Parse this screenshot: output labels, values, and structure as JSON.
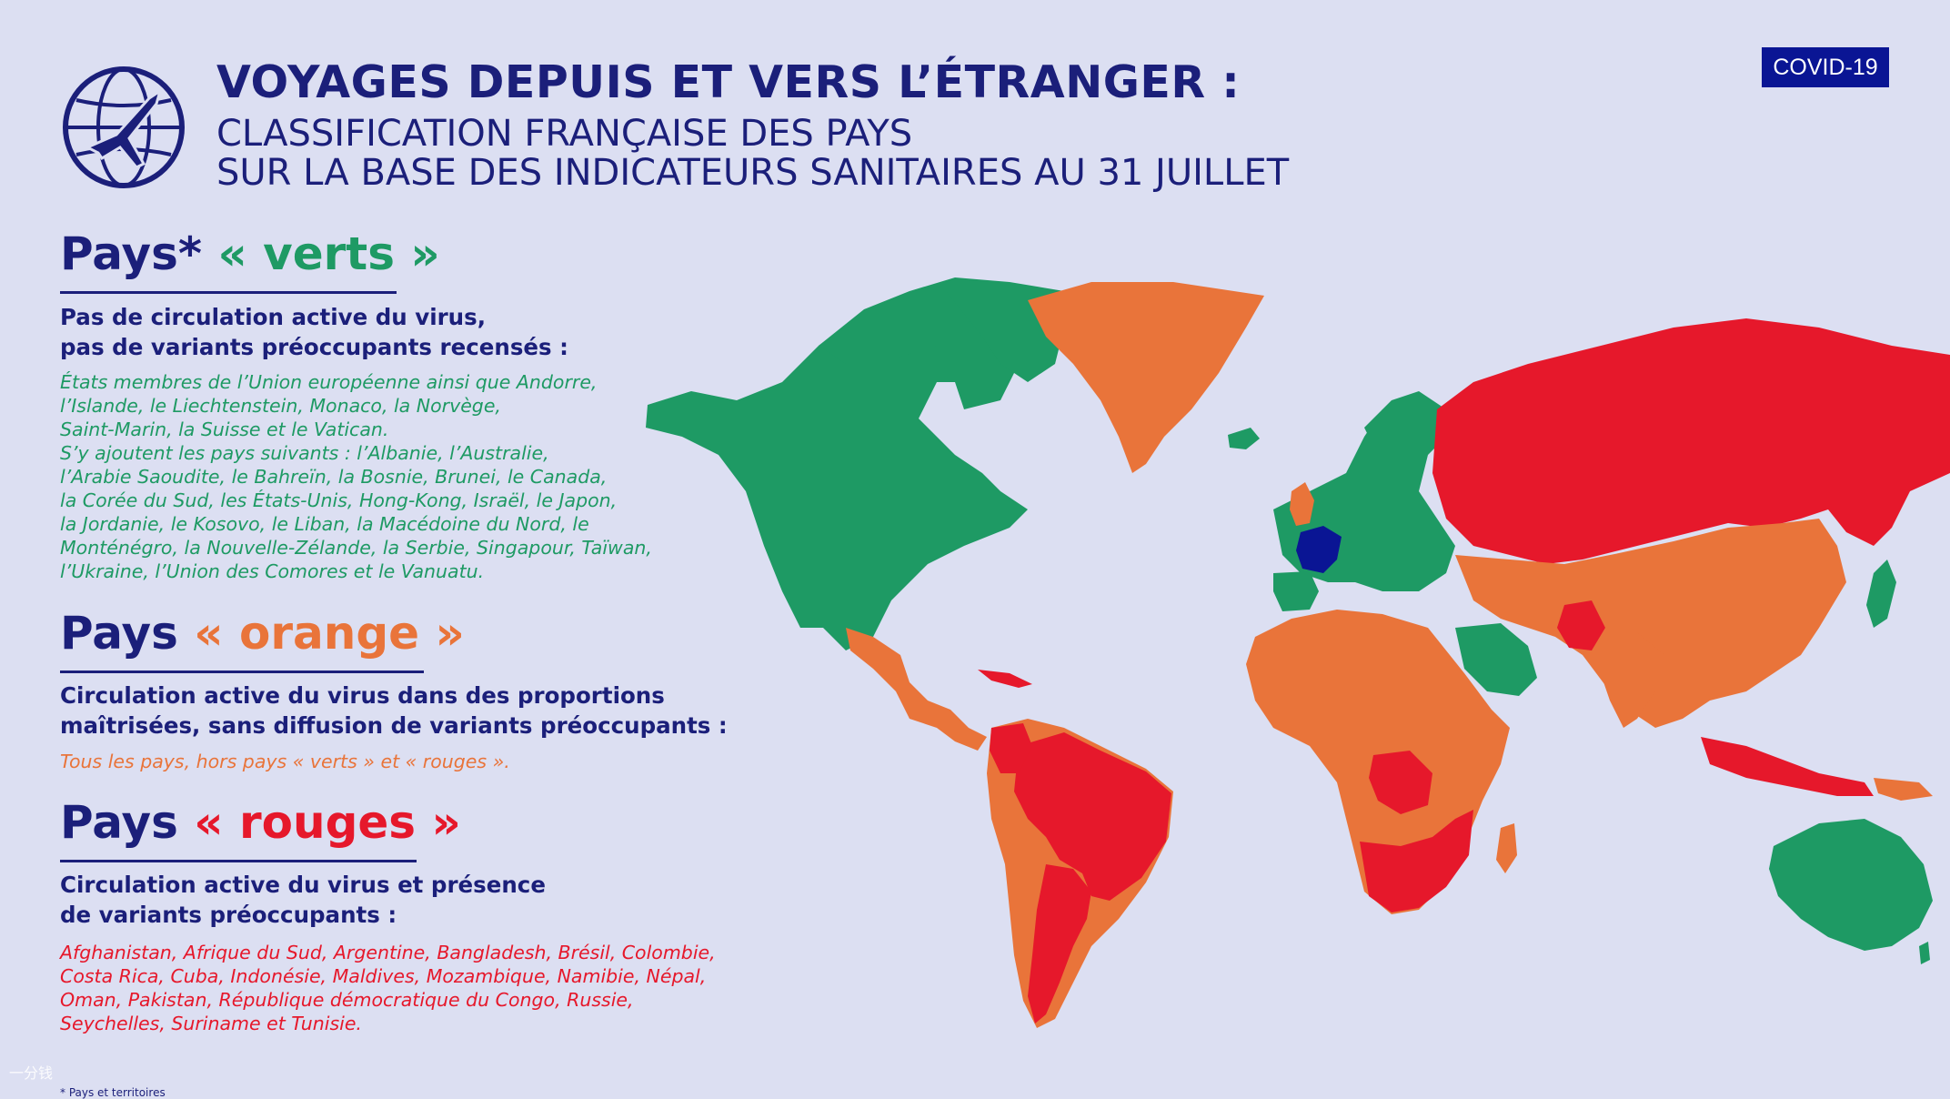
{
  "header": {
    "title": "VOYAGES DEPUIS ET VERS L’ÉTRANGER :",
    "subtitle_line1": "CLASSIFICATION FRANÇAISE DES PAYS",
    "subtitle_line2": "SUR LA BASE DES INDICATEURS SANITAIRES AU 31 JUILLET",
    "badge": "COVID-19",
    "logo_icon": "globe-airplane-icon"
  },
  "colors": {
    "background": "#dcdff2",
    "navy": "#1b1f7a",
    "green": "#1e9a64",
    "orange": "#e9743a",
    "red": "#e6182b",
    "france": "#0a1594"
  },
  "sections": {
    "green": {
      "prefix": "Pays*",
      "label": "« verts »",
      "lead_line1": "Pas de circulation active du virus,",
      "lead_line2": "pas de variants préoccupants recensés :",
      "list": [
        "États membres de l’Union européenne ainsi que Andorre,",
        "l’Islande, le Liechtenstein, Monaco, la Norvège,",
        "Saint-Marin, la Suisse et le Vatican.",
        "S’y ajoutent les pays suivants : l’Albanie, l’Australie,",
        "l’Arabie Saoudite, le Bahreïn, la Bosnie, Brunei, le Canada,",
        "la Corée du Sud, les États-Unis, Hong-Kong, Israël, le Japon,",
        "la Jordanie, le Kosovo, le Liban, la Macédoine du Nord, le",
        "Monténégro, la Nouvelle-Zélande, la Serbie, Singapour, Taïwan,",
        "l’Ukraine, l’Union des Comores et le Vanuatu."
      ]
    },
    "orange": {
      "prefix": "Pays",
      "label": "« orange »",
      "lead_line1": "Circulation active du virus dans des proportions",
      "lead_line2": "maîtrisées, sans diffusion de variants préoccupants :",
      "list": [
        "Tous les pays, hors pays « verts » et « rouges »."
      ]
    },
    "red": {
      "prefix": "Pays",
      "label": "« rouges »",
      "lead_line1": "Circulation active du virus et présence",
      "lead_line2": "de variants préoccupants :",
      "list": [
        "Afghanistan, Afrique du Sud, Argentine, Bangladesh, Brésil, Colombie,",
        "Costa Rica, Cuba, Indonésie, Maldives, Mozambique, Namibie, Népal,",
        "Oman, Pakistan, République démocratique du Congo, Russie,",
        "Seychelles, Suriname et Tunisie."
      ]
    }
  },
  "footnote": "* Pays et territoires",
  "watermark": "一分钱",
  "map_regions": [
    {
      "name": "North America",
      "category": "green"
    },
    {
      "name": "Greenland",
      "category": "orange"
    },
    {
      "name": "Mexico & Central America",
      "category": "orange"
    },
    {
      "name": "Cuba",
      "category": "red"
    },
    {
      "name": "South America",
      "category": "orange"
    },
    {
      "name": "Brazil & Colombia",
      "category": "red"
    },
    {
      "name": "Argentina",
      "category": "red"
    },
    {
      "name": "Europe",
      "category": "green"
    },
    {
      "name": "United Kingdom",
      "category": "orange"
    },
    {
      "name": "France",
      "category": "france"
    },
    {
      "name": "Russia",
      "category": "red"
    },
    {
      "name": "Africa",
      "category": "orange"
    },
    {
      "name": "DR Congo",
      "category": "red"
    },
    {
      "name": "Southern Africa",
      "category": "red"
    },
    {
      "name": "Saudi Arabia",
      "category": "green"
    },
    {
      "name": "Central & East Asia",
      "category": "orange"
    },
    {
      "name": "Pakistan",
      "category": "red"
    },
    {
      "name": "Japan & Korea",
      "category": "green"
    },
    {
      "name": "Indonesia",
      "category": "red"
    },
    {
      "name": "Australia",
      "category": "green"
    }
  ]
}
